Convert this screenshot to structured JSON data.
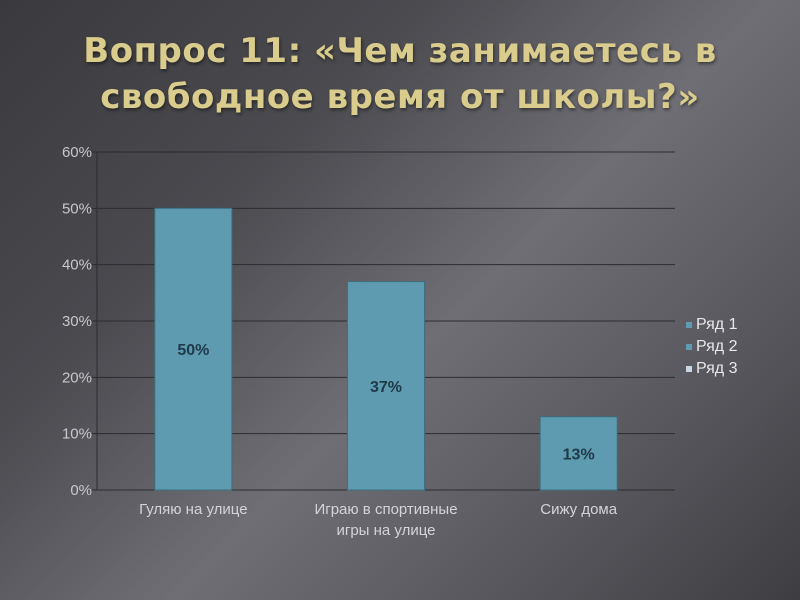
{
  "title": "Вопрос 11: «Чем занимаетесь в свободное время от школы?»",
  "colors": {
    "bar": "#5f9bb0",
    "bar_stroke": "#3d6f82",
    "grid": "#2c2c30",
    "title": "#d9cc8c"
  },
  "chart_data": {
    "type": "bar",
    "title": "Вопрос 11: «Чем занимаетесь в свободное время от школы?»",
    "categories": [
      [
        "Гуляю на улице"
      ],
      [
        "Играю в спортивные",
        "игры на улице"
      ],
      [
        "Сижу дома"
      ]
    ],
    "series": [
      {
        "name": "Ряд 1",
        "values": [
          50,
          37,
          13
        ],
        "data_labels": [
          "50%",
          "37%",
          "13%"
        ]
      }
    ],
    "y_ticks": [
      "0%",
      "10%",
      "20%",
      "30%",
      "40%",
      "50%",
      "60%"
    ],
    "ylim": [
      0,
      60
    ],
    "grid": true,
    "legend": {
      "position": "right",
      "entries": [
        "Ряд 1",
        "Ряд 2",
        "Ряд 3"
      ],
      "colors": [
        "#5f9bb0",
        "#5f9bb0",
        "#c9d6e3"
      ]
    }
  }
}
